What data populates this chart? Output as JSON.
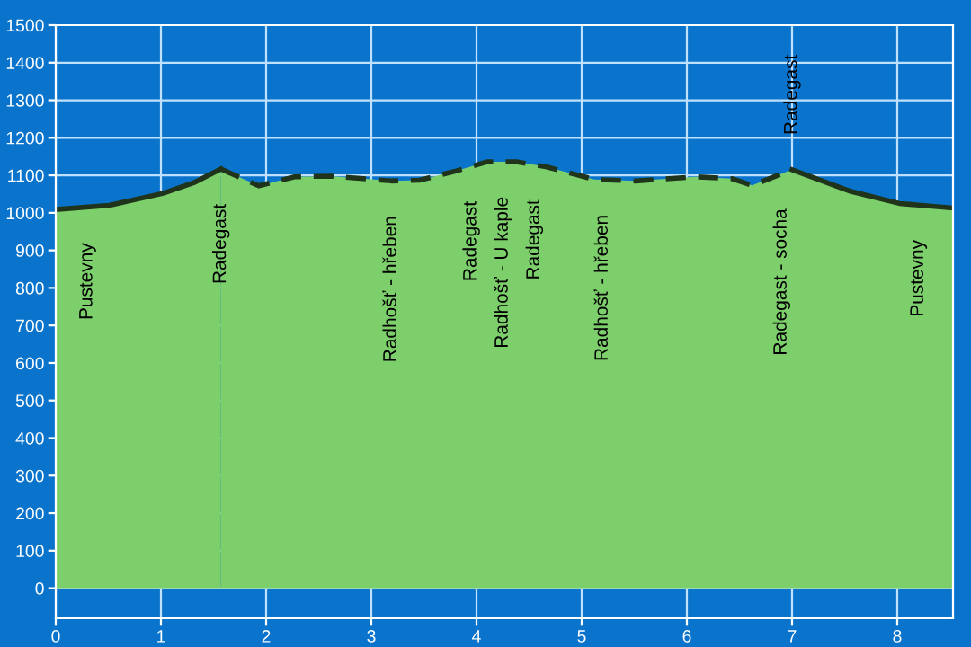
{
  "chart_data": {
    "type": "area",
    "series": [
      {
        "color": "#7ccf6a",
        "line_style": "solid",
        "x": [
          0,
          0.51,
          1.02,
          1.31,
          1.57
        ],
        "values": [
          1009,
          1020,
          1052,
          1080,
          1117
        ]
      },
      {
        "color": "#7ccf6a",
        "line_style": "dashed",
        "x": [
          1.57,
          1.93,
          2.27,
          2.61,
          3.19,
          3.46,
          3.81,
          4.1,
          4.38,
          4.66,
          5.12,
          5.51,
          6.09,
          6.43,
          6.62,
          7.0
        ],
        "values": [
          1117,
          1072,
          1096,
          1098,
          1085,
          1087,
          1112,
          1136,
          1136,
          1123,
          1089,
          1085,
          1096,
          1091,
          1073,
          1115
        ]
      },
      {
        "color": "#7ccf6a",
        "line_style": "solid",
        "x": [
          7.0,
          7.56,
          8.02,
          8.53
        ],
        "values": [
          1115,
          1057,
          1025,
          1013
        ]
      }
    ],
    "annotations": [
      {
        "text": "Pustevny",
        "x": 0.3,
        "y": 1013
      },
      {
        "text": "Radegast",
        "x": 1.57,
        "y": 1117
      },
      {
        "text": "Radhošť - hřeben",
        "x": 3.19,
        "y": 1085
      },
      {
        "text": "Radegast",
        "x": 3.95,
        "y": 1124
      },
      {
        "text": "Radhošť - U kaple",
        "x": 4.25,
        "y": 1136
      },
      {
        "text": "Radegast",
        "x": 4.55,
        "y": 1128
      },
      {
        "text": "Radhošť - hřeben",
        "x": 5.2,
        "y": 1088
      },
      {
        "text": "Radegast - socha",
        "x": 6.9,
        "y": 1104
      },
      {
        "text": "Radegast",
        "x": 7.0,
        "y": 1115
      },
      {
        "text": "Pustevny",
        "x": 8.2,
        "y": 1021
      }
    ],
    "xlim": [
      0,
      8.53
    ],
    "xticks": [
      0,
      1,
      2,
      3,
      4,
      5,
      6,
      7,
      8
    ],
    "ylim": [
      -80,
      1500
    ],
    "yticks": [
      0,
      100,
      200,
      300,
      400,
      500,
      600,
      700,
      800,
      900,
      1000,
      1100,
      1200,
      1300,
      1400,
      1500
    ],
    "grid": true
  }
}
